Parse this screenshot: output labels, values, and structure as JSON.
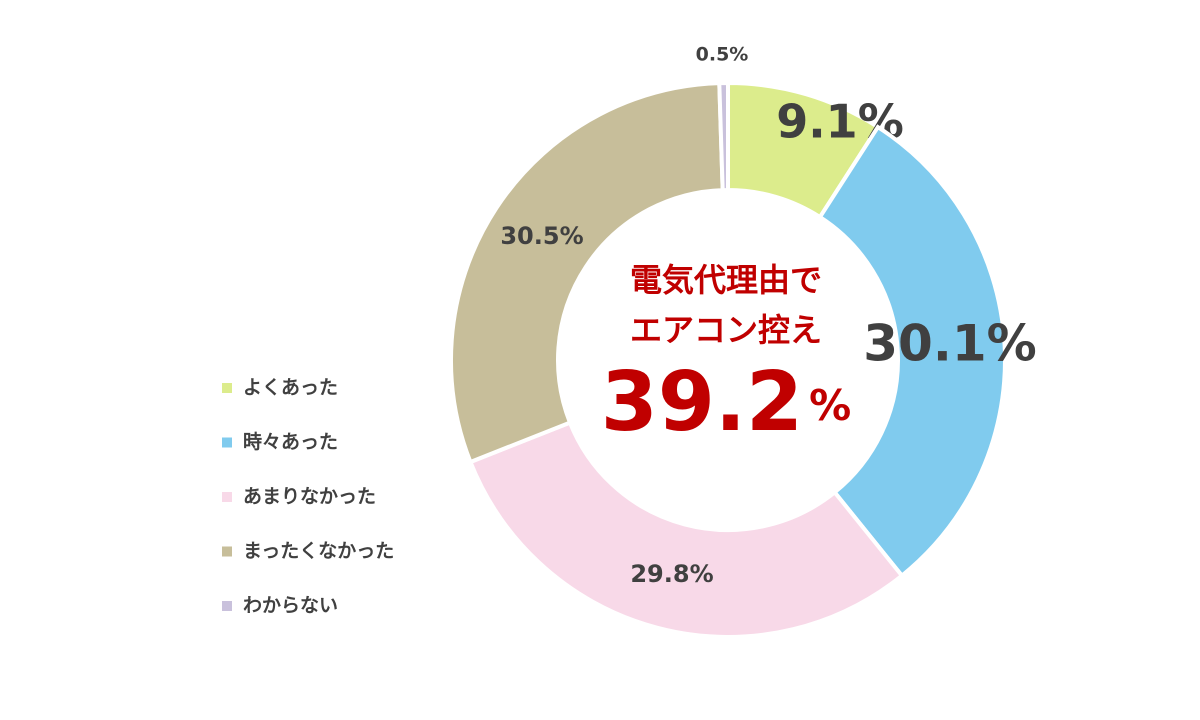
{
  "chart_data": {
    "type": "donut",
    "categories": [
      "よくあった",
      "時々あった",
      "あまりなかった",
      "まったくなかった",
      "わからない"
    ],
    "values": [
      9.1,
      30.1,
      29.8,
      30.5,
      0.5
    ],
    "value_labels": [
      "9.1%",
      "30.1%",
      "29.8%",
      "30.5%",
      "0.5%"
    ],
    "colors": [
      "#dcec8c",
      "#80cbee",
      "#f8d9e8",
      "#c7be9a",
      "#c9c1dc"
    ],
    "center_text": [
      "電気代理由で",
      "エアコン控え"
    ],
    "center_value": "39.2",
    "center_unit": "%"
  }
}
